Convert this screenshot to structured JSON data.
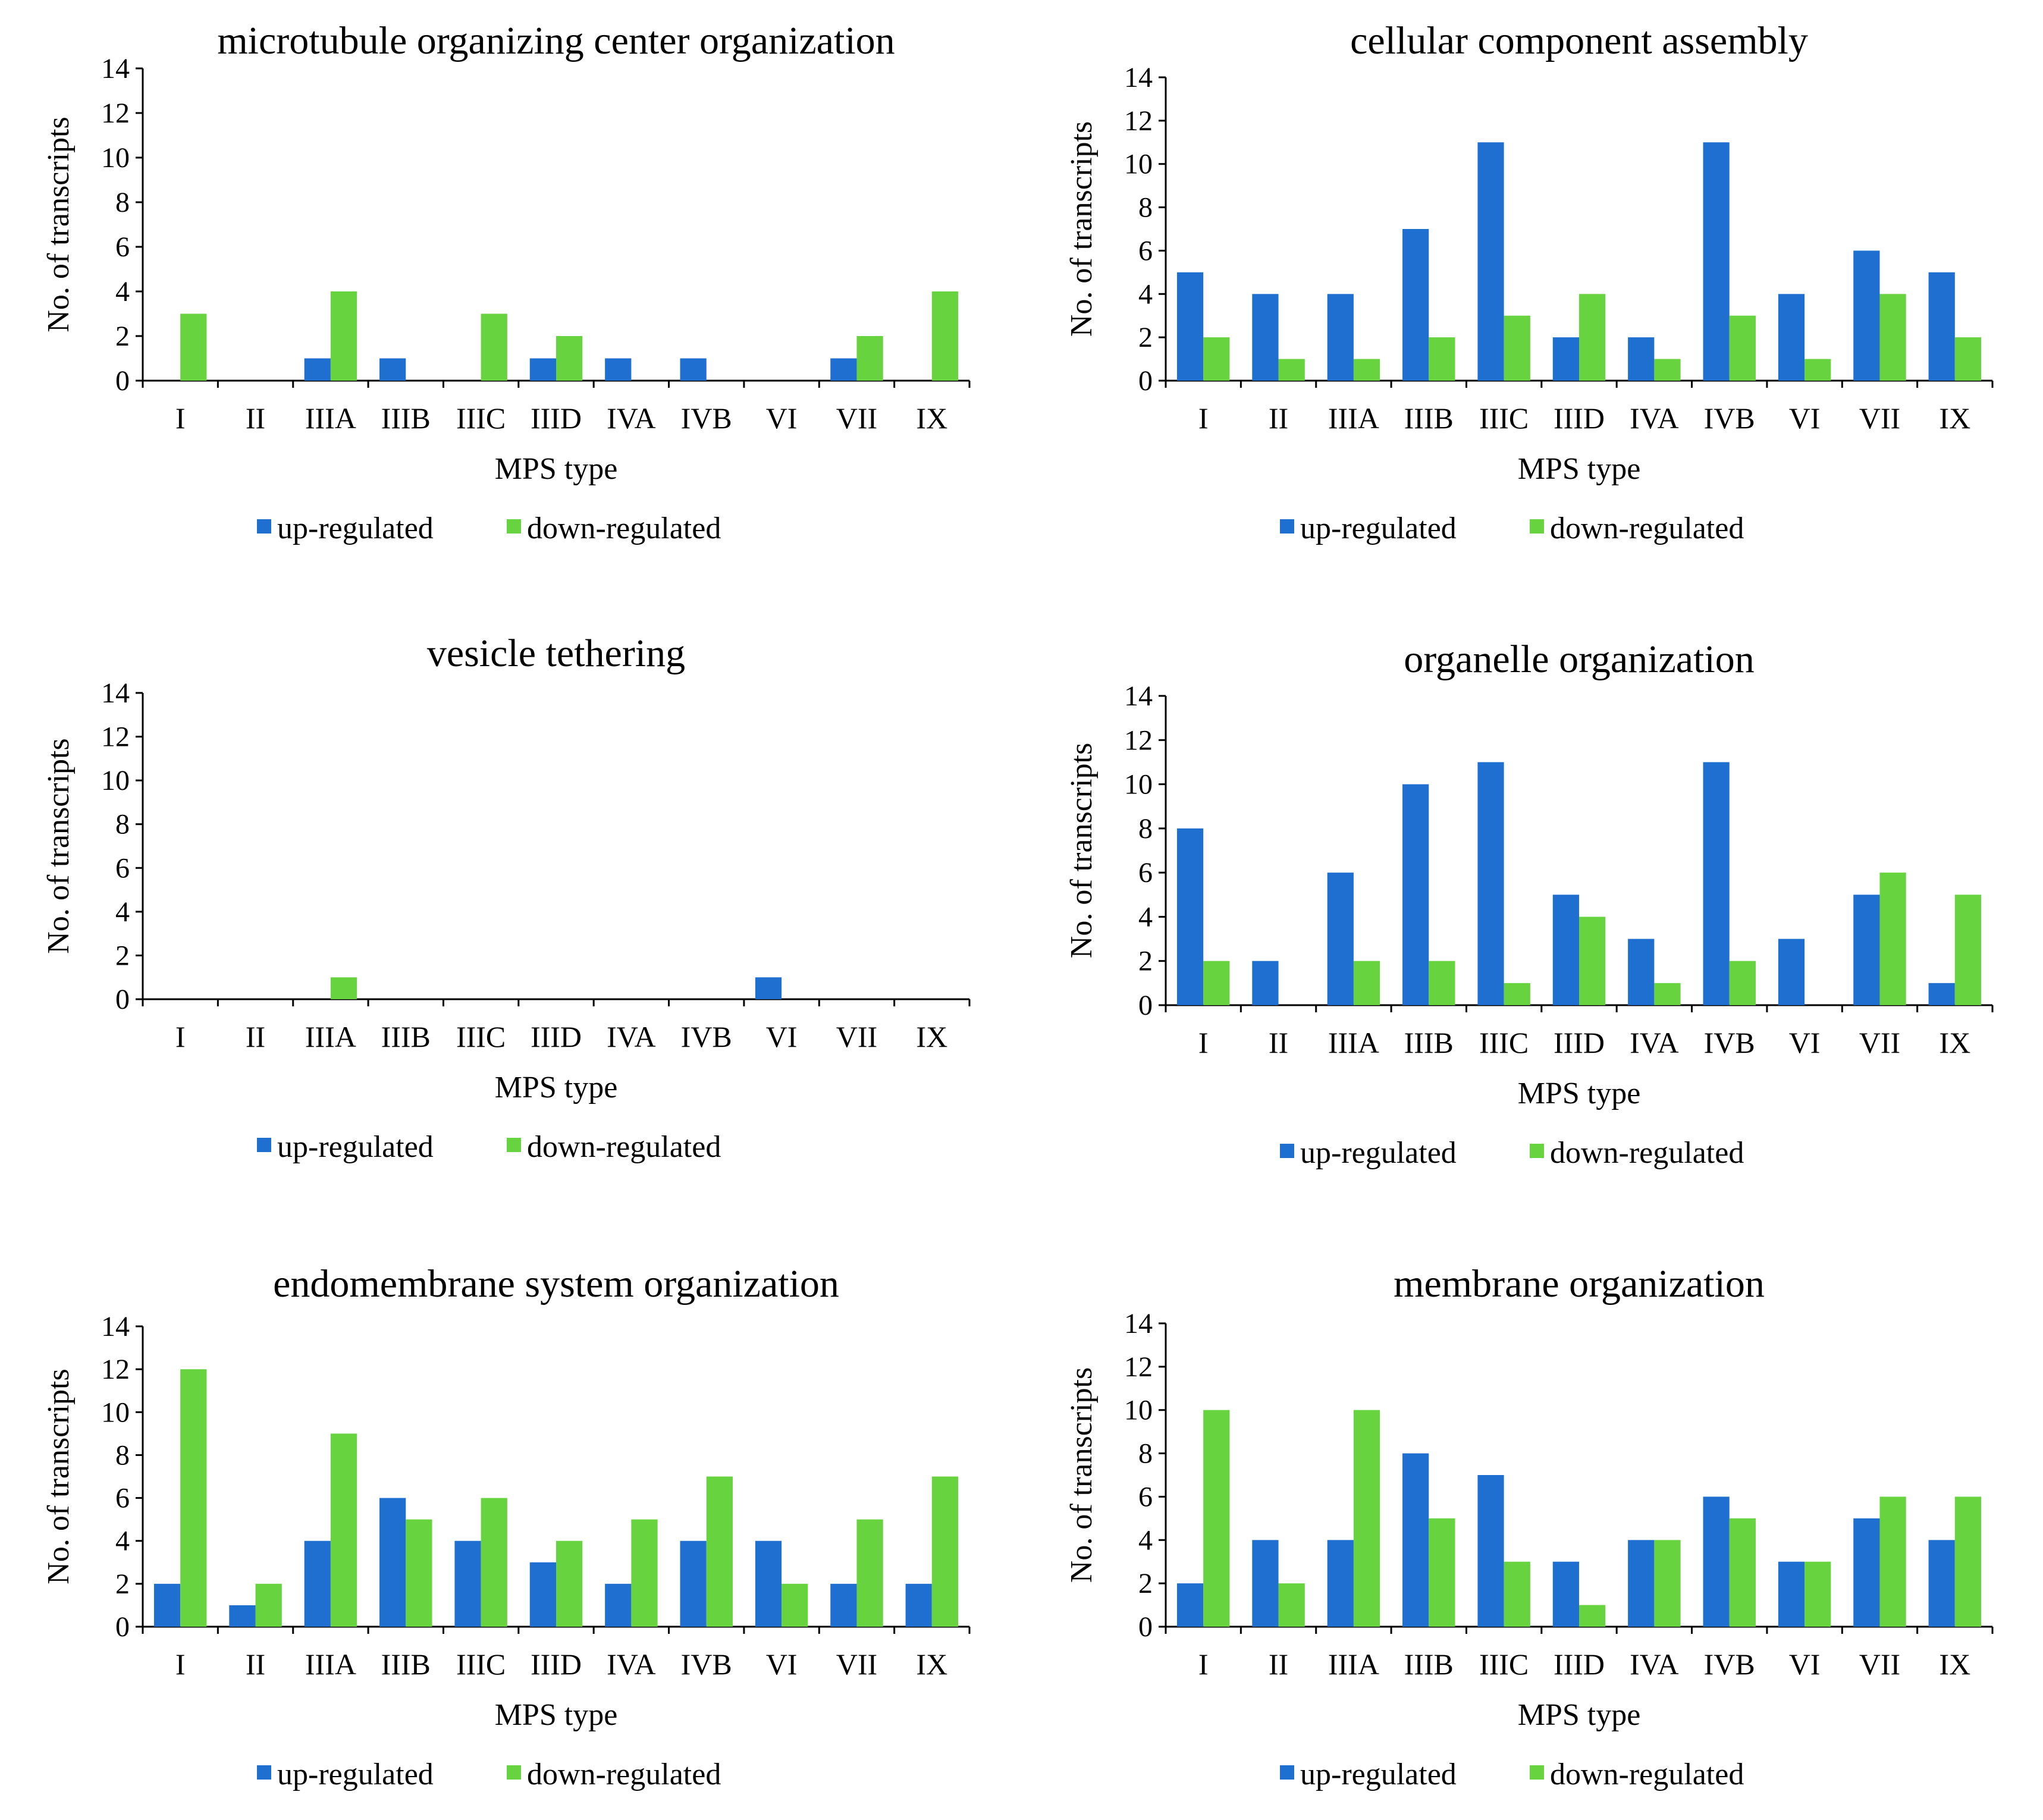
{
  "colors": {
    "up": "#1F6FD0",
    "down": "#66D33F"
  },
  "chart_data": [
    {
      "type": "bar",
      "title": "microtubule organizing center organization",
      "xlabel": "MPS type",
      "ylabel": "No. of transcripts",
      "ylim": [
        0,
        14
      ],
      "yticks": [
        0,
        2,
        4,
        6,
        8,
        10,
        12,
        14
      ],
      "categories": [
        "I",
        "II",
        "IIIA",
        "IIIB",
        "IIIC",
        "IIID",
        "IVA",
        "IVB",
        "VI",
        "VII",
        "IX"
      ],
      "series": [
        {
          "name": "up-regulated",
          "values": [
            0,
            0,
            1,
            1,
            0,
            1,
            1,
            1,
            0,
            1,
            0
          ]
        },
        {
          "name": "down-regulated",
          "values": [
            3,
            0,
            4,
            0,
            3,
            2,
            0,
            0,
            0,
            2,
            4
          ]
        }
      ],
      "legend": "bottom"
    },
    {
      "type": "bar",
      "title": "cellular component assembly",
      "xlabel": "MPS type",
      "ylabel": "No. of transcripts",
      "ylim": [
        0,
        14
      ],
      "yticks": [
        0,
        2,
        4,
        6,
        8,
        10,
        12,
        14
      ],
      "categories": [
        "I",
        "II",
        "IIIA",
        "IIIB",
        "IIIC",
        "IIID",
        "IVA",
        "IVB",
        "VI",
        "VII",
        "IX"
      ],
      "series": [
        {
          "name": "up-regulated",
          "values": [
            5,
            4,
            4,
            7,
            11,
            2,
            2,
            11,
            4,
            6,
            5
          ]
        },
        {
          "name": "down-regulated",
          "values": [
            2,
            1,
            1,
            2,
            3,
            4,
            1,
            3,
            1,
            4,
            2
          ]
        }
      ],
      "legend": "bottom"
    },
    {
      "type": "bar",
      "title": "vesicle tethering",
      "xlabel": "MPS type",
      "ylabel": "No. of transcripts",
      "ylim": [
        0,
        14
      ],
      "yticks": [
        0,
        2,
        4,
        6,
        8,
        10,
        12,
        14
      ],
      "categories": [
        "I",
        "II",
        "IIIA",
        "IIIB",
        "IIIC",
        "IIID",
        "IVA",
        "IVB",
        "VI",
        "VII",
        "IX"
      ],
      "series": [
        {
          "name": "up-regulated",
          "values": [
            0,
            0,
            0,
            0,
            0,
            0,
            0,
            0,
            1,
            0,
            0
          ]
        },
        {
          "name": "down-regulated",
          "values": [
            0,
            0,
            1,
            0,
            0,
            0,
            0,
            0,
            0,
            0,
            0
          ]
        }
      ],
      "legend": "bottom"
    },
    {
      "type": "bar",
      "title": "organelle organization",
      "xlabel": "MPS type",
      "ylabel": "No. of transcripts",
      "ylim": [
        0,
        14
      ],
      "yticks": [
        0,
        2,
        4,
        6,
        8,
        10,
        12,
        14
      ],
      "categories": [
        "I",
        "II",
        "IIIA",
        "IIIB",
        "IIIC",
        "IIID",
        "IVA",
        "IVB",
        "VI",
        "VII",
        "IX"
      ],
      "series": [
        {
          "name": "up-regulated",
          "values": [
            8,
            2,
            6,
            10,
            11,
            5,
            3,
            11,
            3,
            5,
            1
          ]
        },
        {
          "name": "down-regulated",
          "values": [
            2,
            0,
            2,
            2,
            1,
            4,
            1,
            2,
            0,
            6,
            5
          ]
        }
      ],
      "legend": "bottom"
    },
    {
      "type": "bar",
      "title": "endomembrane system organization",
      "xlabel": "MPS type",
      "ylabel": "No. of transcripts",
      "ylim": [
        0,
        14
      ],
      "yticks": [
        0,
        2,
        4,
        6,
        8,
        10,
        12,
        14
      ],
      "categories": [
        "I",
        "II",
        "IIIA",
        "IIIB",
        "IIIC",
        "IIID",
        "IVA",
        "IVB",
        "VI",
        "VII",
        "IX"
      ],
      "series": [
        {
          "name": "up-regulated",
          "values": [
            2,
            1,
            4,
            6,
            4,
            3,
            2,
            4,
            4,
            2,
            2
          ]
        },
        {
          "name": "down-regulated",
          "values": [
            12,
            2,
            9,
            5,
            6,
            4,
            5,
            7,
            2,
            5,
            7
          ]
        }
      ],
      "legend": "bottom"
    },
    {
      "type": "bar",
      "title": "membrane organization",
      "xlabel": "MPS type",
      "ylabel": "No. of transcripts",
      "ylim": [
        0,
        14
      ],
      "yticks": [
        0,
        2,
        4,
        6,
        8,
        10,
        12,
        14
      ],
      "categories": [
        "I",
        "II",
        "IIIA",
        "IIIB",
        "IIIC",
        "IIID",
        "IVA",
        "IVB",
        "VI",
        "VII",
        "IX"
      ],
      "series": [
        {
          "name": "up-regulated",
          "values": [
            2,
            4,
            4,
            8,
            7,
            3,
            4,
            6,
            3,
            5,
            4
          ]
        },
        {
          "name": "down-regulated",
          "values": [
            10,
            2,
            10,
            5,
            3,
            1,
            4,
            5,
            3,
            6,
            6
          ]
        }
      ],
      "legend": "bottom"
    }
  ]
}
